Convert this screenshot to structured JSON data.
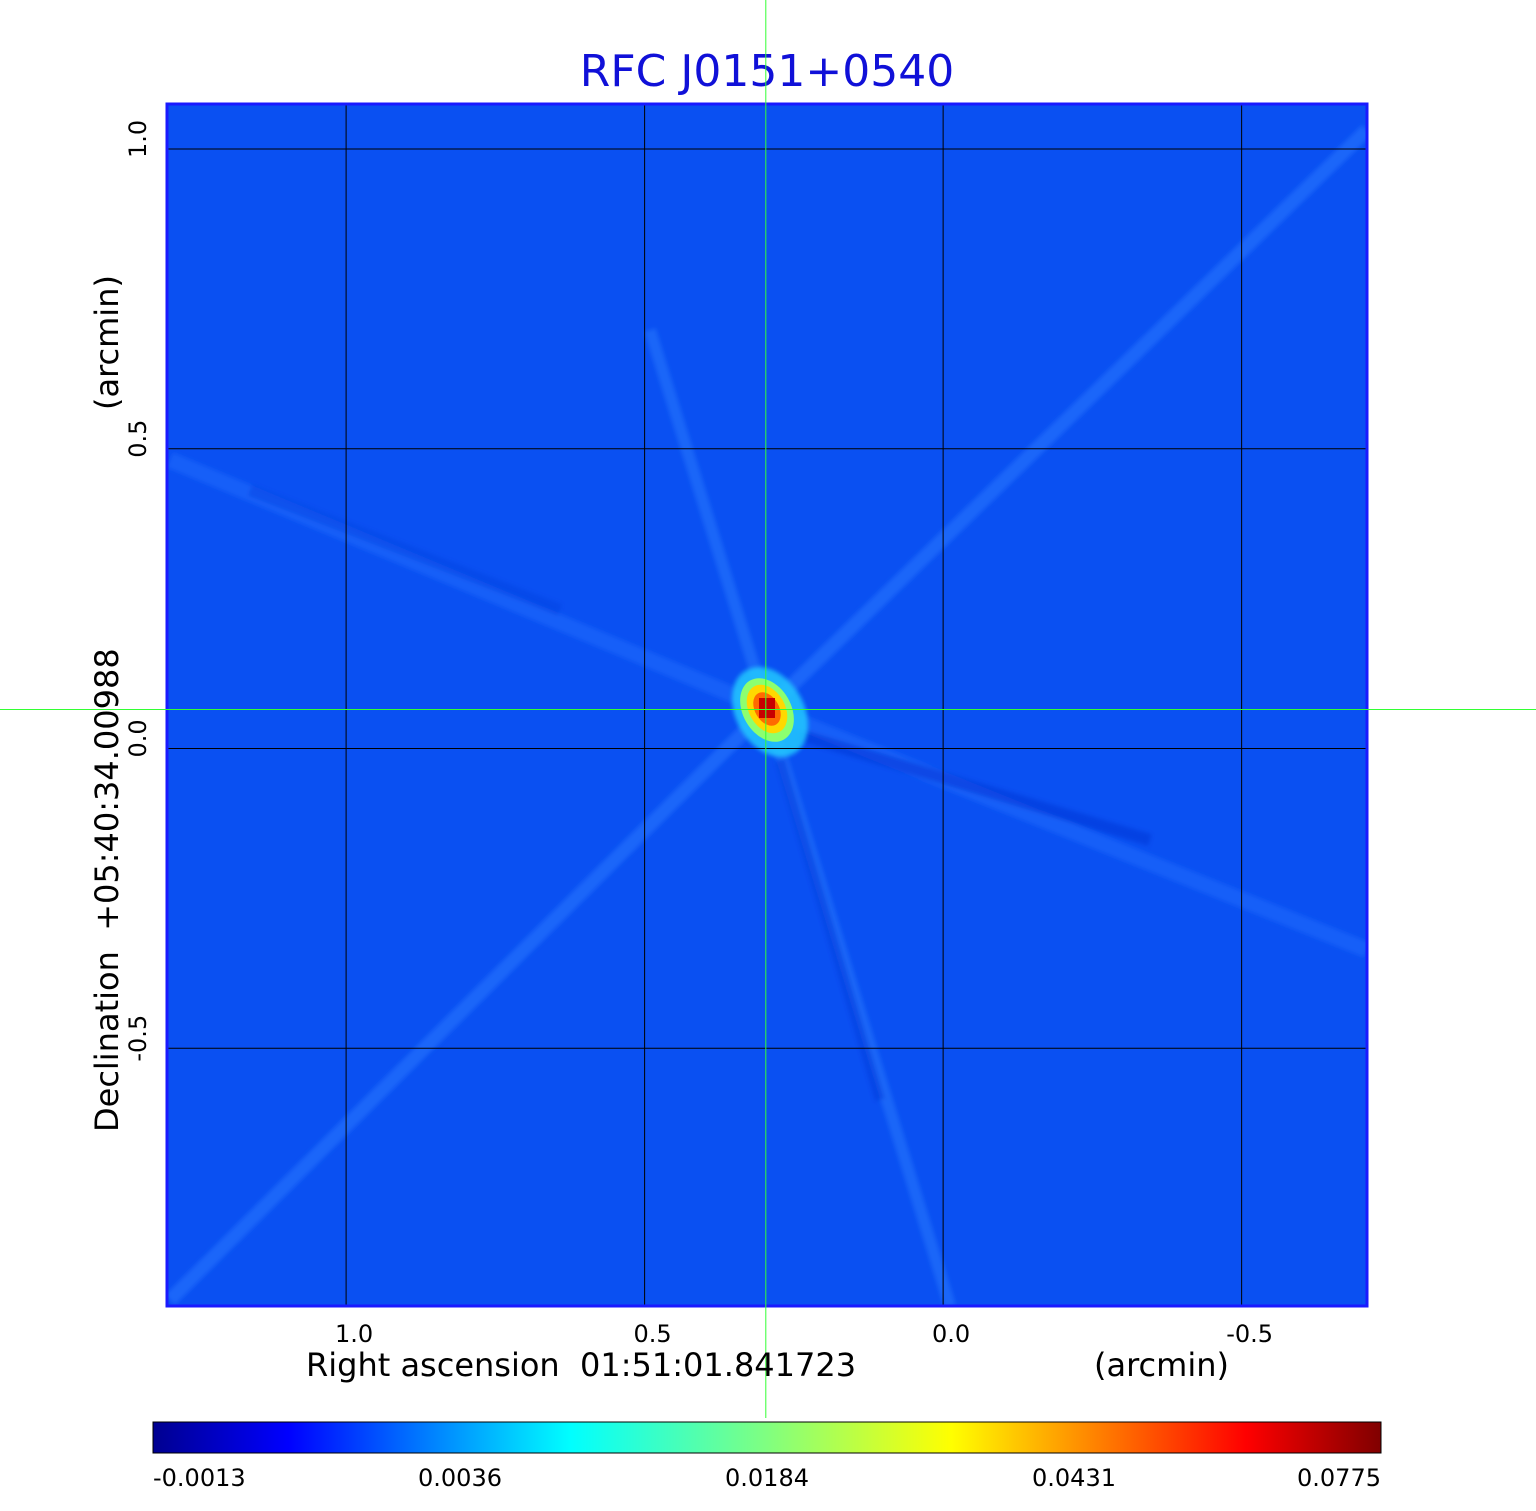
{
  "chart_data": {
    "type": "heatmap",
    "title": "RFC J0151+0540",
    "xlabel": "Right ascension  01:51:01.841723",
    "x_unit": "(arcmin)",
    "ylabel": "Declination  +05:40:34.00988",
    "y_unit": "(arcmin)",
    "x_ticks": [
      1.0,
      0.5,
      0.0,
      -0.5
    ],
    "x_tick_labels": [
      "1.0",
      "0.5",
      "0.0",
      "-0.5"
    ],
    "y_ticks": [
      1.0,
      0.5,
      0.0,
      -0.5
    ],
    "y_tick_labels": [
      "1.0",
      "0.5",
      "0.0",
      "-0.5"
    ],
    "xlim": [
      1.3,
      -0.71
    ],
    "ylim": [
      -0.93,
      1.075
    ],
    "grid": true,
    "crosshair": {
      "x": 0.297,
      "y": 0.065
    },
    "peak": {
      "x": 0.297,
      "y": 0.065,
      "value": 0.0775
    },
    "colormap": "jet",
    "colorbar_ticks": [
      -0.0013,
      0.0036,
      0.0184,
      0.0431,
      0.0775
    ],
    "colorbar_tick_labels": [
      "-0.0013",
      "0.0036",
      "0.0184",
      "0.0431",
      "0.0775"
    ],
    "colors": {
      "title": "#1010d8",
      "crosshair": "#33ff33",
      "frame": "#1a1aff",
      "grid": "#000000",
      "background_field": "#0a50f2"
    }
  }
}
